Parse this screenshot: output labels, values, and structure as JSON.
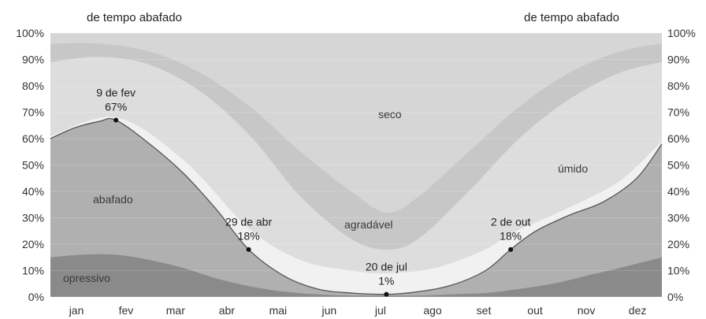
{
  "chart_data": {
    "type": "area",
    "months": [
      "jan",
      "fev",
      "mar",
      "abr",
      "mai",
      "jun",
      "jul",
      "ago",
      "set",
      "out",
      "nov",
      "dez"
    ],
    "y_ticks": [
      "0%",
      "10%",
      "20%",
      "30%",
      "40%",
      "50%",
      "60%",
      "70%",
      "80%",
      "90%",
      "100%"
    ],
    "ylim": [
      0,
      100
    ],
    "top_labels": {
      "left": "de tempo abafado",
      "right": "de tempo abafado"
    },
    "region_labels": {
      "oppressive": "opressivo",
      "muggy": "abafado",
      "comfortable": "agradável",
      "humid": "úmido",
      "dry": "seco"
    },
    "series": [
      {
        "id": "muggy_or_worse",
        "x_day": [
          1,
          15,
          30,
          40,
          60,
          80,
          100,
          119,
          140,
          160,
          180,
          201,
          220,
          240,
          260,
          275,
          290,
          310,
          330,
          350,
          365
        ],
        "values": [
          60,
          64,
          66.5,
          67,
          58,
          47,
          33,
          18,
          8,
          3,
          1.5,
          1,
          2,
          4.5,
          10,
          18,
          25,
          31,
          36,
          45,
          58
        ]
      },
      {
        "id": "oppressive",
        "x_day": [
          1,
          20,
          40,
          60,
          80,
          100,
          120,
          140,
          160,
          180,
          200,
          220,
          240,
          260,
          280,
          300,
          320,
          340,
          365
        ],
        "values": [
          15,
          16,
          16,
          14,
          11,
          7,
          4,
          2,
          1,
          0.5,
          0.5,
          0.5,
          1,
          1.5,
          3,
          5,
          8,
          11,
          15
        ]
      },
      {
        "id": "dry_boundary",
        "x_day": [
          1,
          30,
          60,
          90,
          120,
          150,
          180,
          201,
          220,
          250,
          280,
          310,
          340,
          365
        ],
        "values": [
          89,
          91,
          88,
          78,
          61,
          38,
          22,
          18,
          22,
          40,
          60,
          75,
          85,
          89
        ]
      },
      {
        "id": "very_dry_boundary",
        "x_day": [
          1,
          30,
          60,
          90,
          120,
          150,
          180,
          201,
          220,
          250,
          280,
          310,
          340,
          365
        ],
        "values": [
          96,
          96,
          93,
          85,
          72,
          55,
          40,
          32,
          38,
          55,
          72,
          85,
          93,
          96
        ]
      }
    ],
    "annotations": [
      {
        "x_day": 40,
        "value": 67,
        "date": "9 de fev",
        "pct": "67%"
      },
      {
        "x_day": 119,
        "value": 18,
        "date": "29 de abr",
        "pct": "18%"
      },
      {
        "x_day": 201,
        "value": 1,
        "date": "20 de jul",
        "pct": "1%"
      },
      {
        "x_day": 275,
        "value": 18,
        "date": "2 de out",
        "pct": "18%"
      }
    ],
    "colors": {
      "oppressive": "#8a8a8a",
      "muggy": "#b0b0b0",
      "comfortable": "#f1f1f1",
      "humid": "#dddddd",
      "dry": "#c7c7c7",
      "very_dry": "#d6d6d6",
      "line": "#555555"
    }
  }
}
